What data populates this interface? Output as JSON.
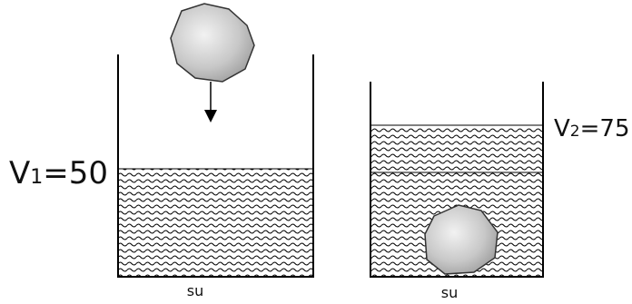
{
  "left": {
    "volume_label": {
      "base": "V",
      "sub": "1",
      "rest": "=50"
    },
    "liquid_label": "su"
  },
  "right": {
    "volume_label": {
      "base": "V",
      "sub": "2",
      "rest": "=75"
    },
    "liquid_label": "su"
  }
}
